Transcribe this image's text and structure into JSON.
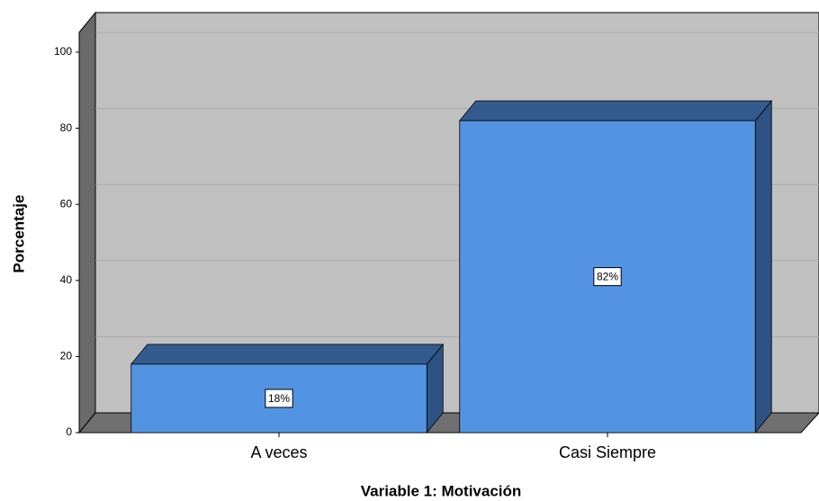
{
  "chart_data": {
    "type": "bar3d",
    "categories": [
      "A veces",
      "Casi Siempre"
    ],
    "values": [
      18,
      82
    ],
    "value_labels": [
      "18%",
      "82%"
    ],
    "color": "#5294e2",
    "ylim": [
      0,
      100
    ],
    "yticks": [
      0,
      20,
      40,
      60,
      80,
      100
    ],
    "grid": true,
    "x_label": "Variable 1: Motivación",
    "y_label": "Porcentaje"
  }
}
